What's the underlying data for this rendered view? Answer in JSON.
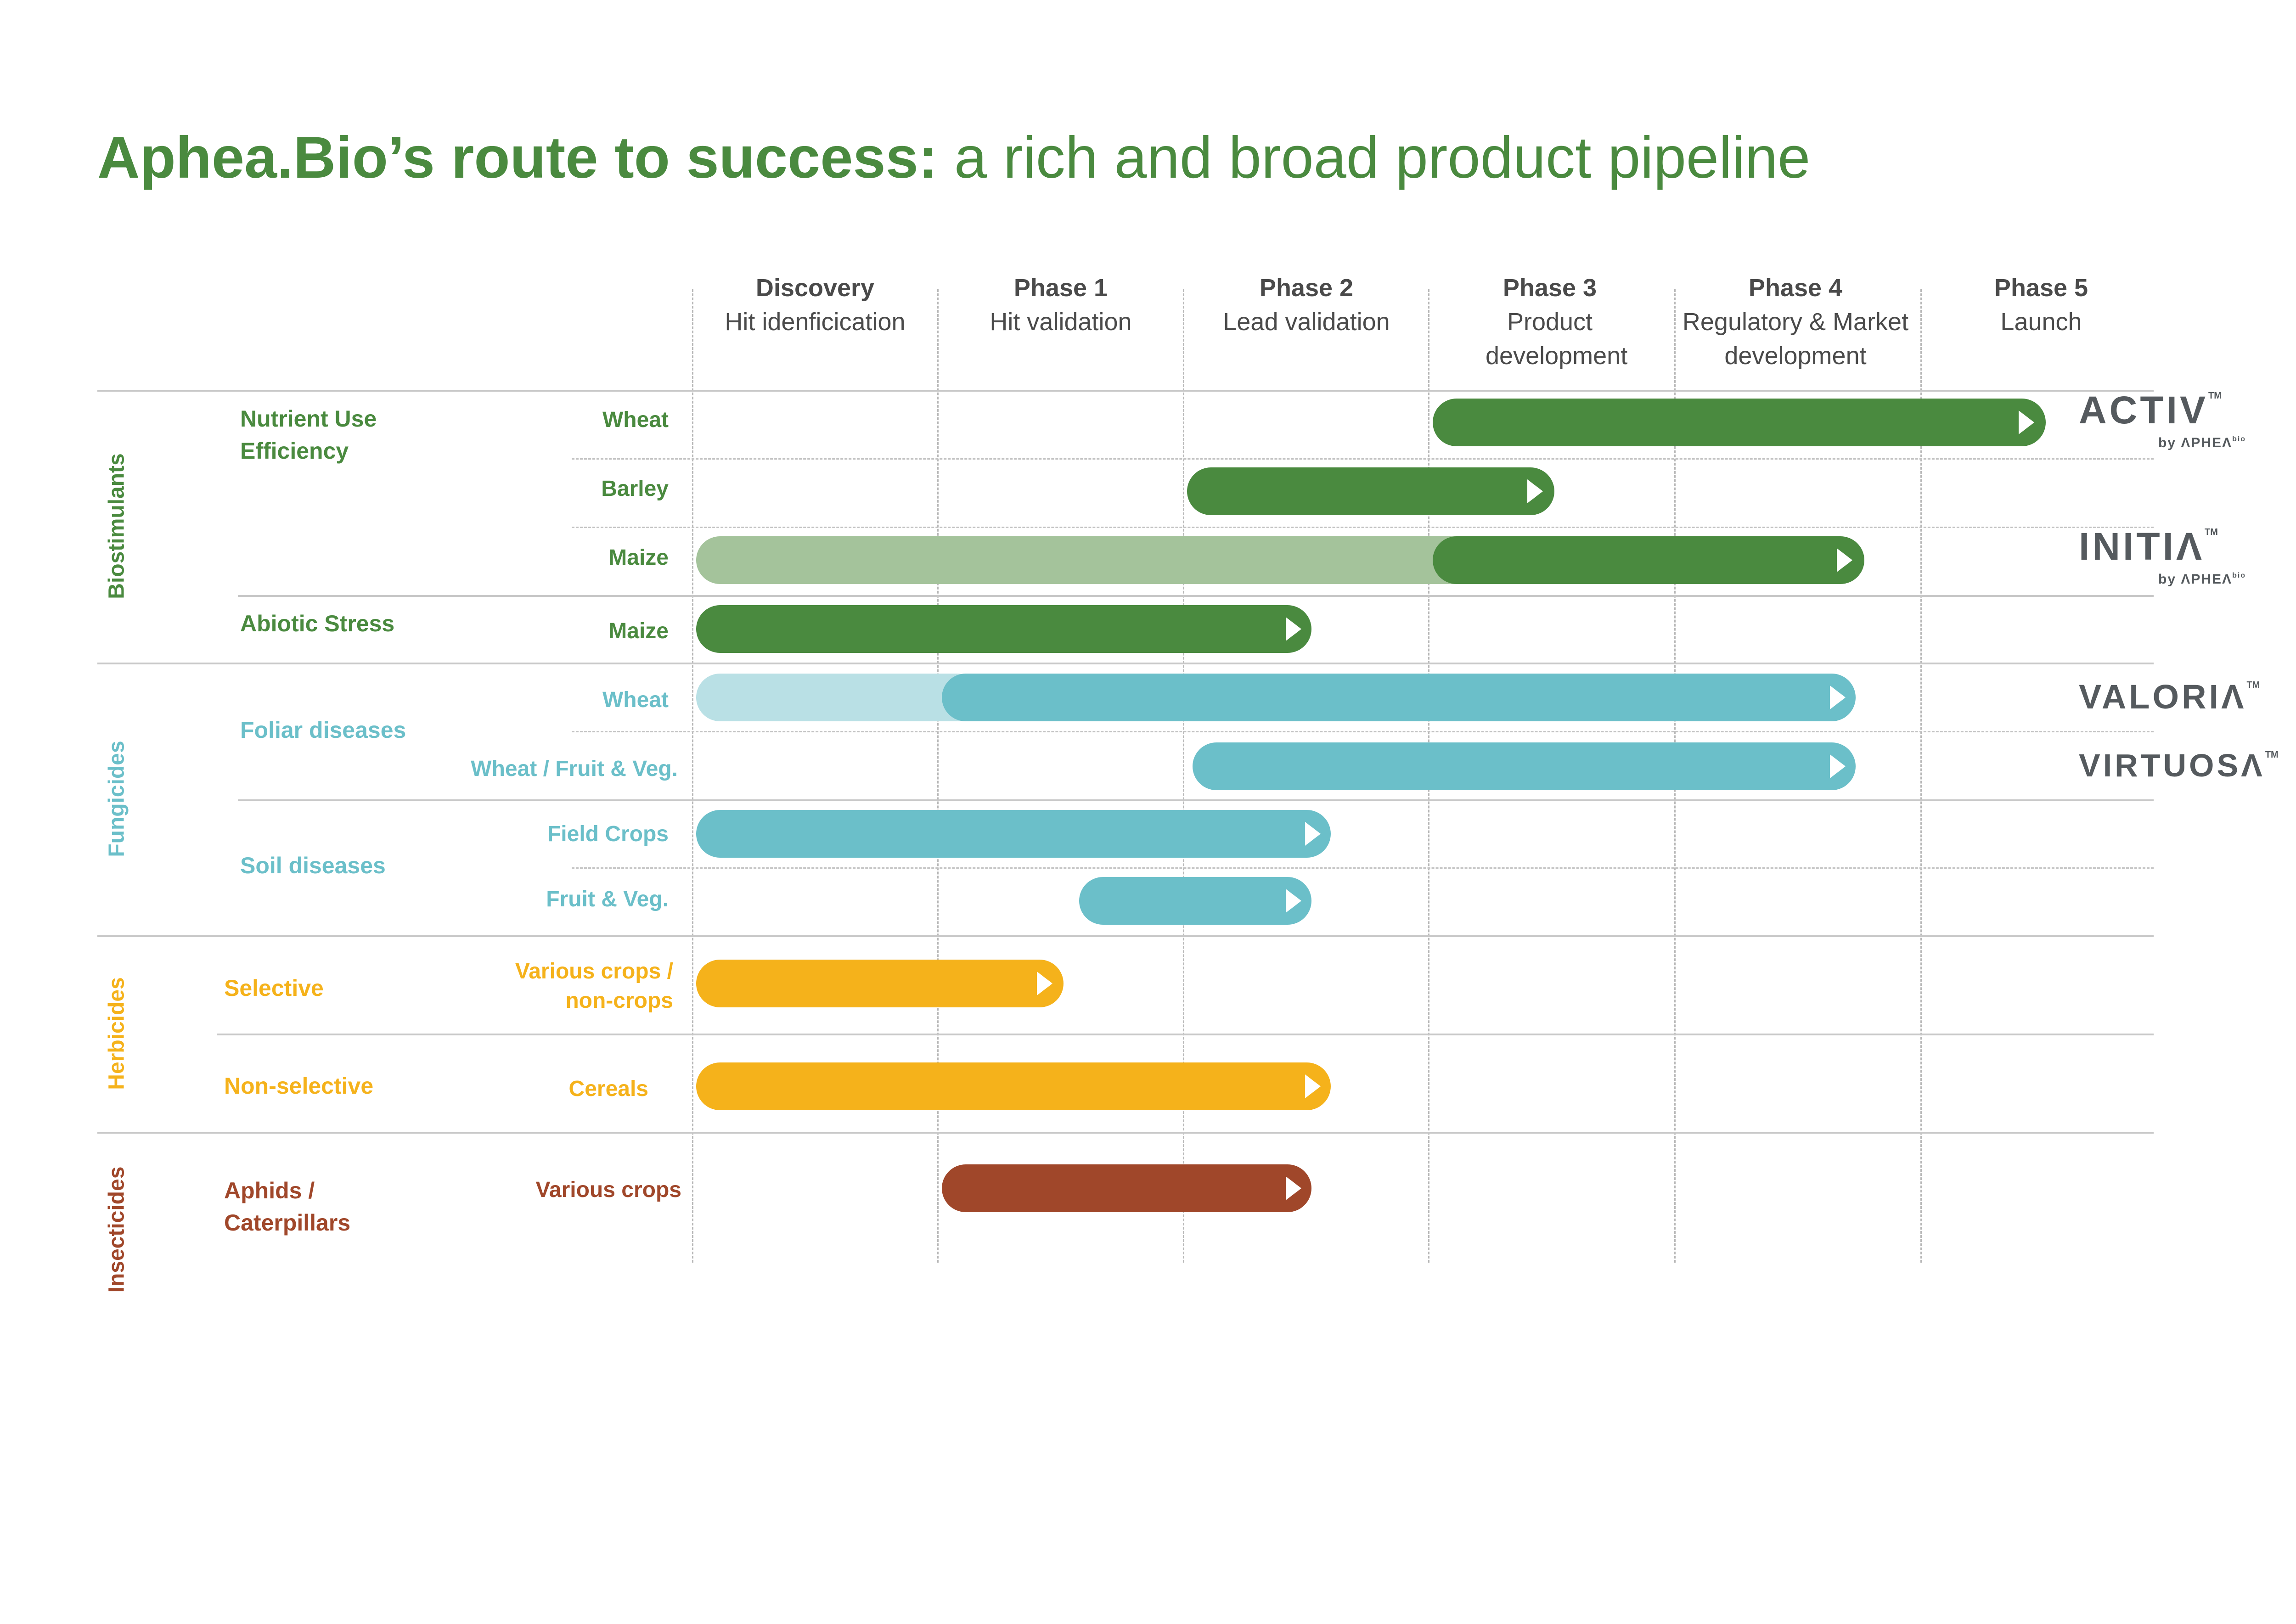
{
  "title": {
    "bold": "Aphea.Bio’s route to success:",
    "light": " a rich and broad product pipeline"
  },
  "phases": [
    {
      "name": "Discovery",
      "desc": "Hit idenficication"
    },
    {
      "name": "Phase 1",
      "desc": "Hit validation"
    },
    {
      "name": "Phase 2",
      "desc": "Lead validation"
    },
    {
      "name": "Phase 3",
      "desc": "Product development"
    },
    {
      "name": "Phase 4",
      "desc": "Regulatory & Market development"
    },
    {
      "name": "Phase 5",
      "desc": "Launch"
    }
  ],
  "categories": [
    {
      "name": "Biostimulants",
      "color": "#4a8a3f"
    },
    {
      "name": "Fungicides",
      "color": "#6bbfc9"
    },
    {
      "name": "Herbicides",
      "color": "#f5b21b"
    },
    {
      "name": "Insecticides",
      "color": "#a0472a"
    }
  ],
  "subcategories": [
    {
      "name": "Nutrient Use Efficiency",
      "category": "Biostimulants"
    },
    {
      "name": "Abiotic Stress",
      "category": "Biostimulants"
    },
    {
      "name": "Foliar diseases",
      "category": "Fungicides"
    },
    {
      "name": "Soil diseases",
      "category": "Fungicides"
    },
    {
      "name": "Selective",
      "category": "Herbicides"
    },
    {
      "name": "Non-selective",
      "category": "Herbicides"
    },
    {
      "name": "Aphids / Caterpillars",
      "category": "Insecticides"
    }
  ],
  "rows": [
    {
      "crop": "Wheat",
      "subcategory": "Nutrient Use Efficiency",
      "progress_phases": 5.5,
      "completed_from_phase": 3
    },
    {
      "crop": "Barley",
      "subcategory": "Nutrient Use Efficiency",
      "progress_phases": 3.5,
      "completed_from_phase": 2
    },
    {
      "crop": "Maize",
      "subcategory": "Nutrient Use Efficiency",
      "progress_phases": 4.75,
      "completed_from_phase": 3
    },
    {
      "crop": "Maize",
      "subcategory": "Abiotic Stress",
      "progress_phases": 2.5,
      "completed_from_phase": 0
    },
    {
      "crop": "Wheat",
      "subcategory": "Foliar diseases",
      "progress_phases": 4.75,
      "completed_from_phase": 1
    },
    {
      "crop": "Wheat / Fruit & Veg.",
      "subcategory": "Foliar diseases",
      "progress_phases": 4.75,
      "completed_from_phase": 2
    },
    {
      "crop": "Field Crops",
      "subcategory": "Soil diseases",
      "progress_phases": 2.6,
      "completed_from_phase": 0
    },
    {
      "crop": "Fruit & Veg.",
      "subcategory": "Soil diseases",
      "progress_phases": 2.5,
      "completed_from_phase": 1.55
    },
    {
      "crop": "Various crops / non-crops",
      "subcategory": "Selective",
      "progress_phases": 1.5,
      "completed_from_phase": 0
    },
    {
      "crop": "Cereals",
      "subcategory": "Non-selective",
      "progress_phases": 2.6,
      "completed_from_phase": 0
    },
    {
      "crop": "Various crops",
      "subcategory": "Aphids / Caterpillars",
      "progress_phases": 2.5,
      "completed_from_phase": 1
    }
  ],
  "logos": [
    {
      "name": "ACTIV",
      "tm": "TM",
      "by": "by ΛPHEΛ",
      "bio": "bio"
    },
    {
      "name": "INITIΛ",
      "tm": "TM",
      "by": "by ΛPHEΛ",
      "bio": "bio"
    },
    {
      "name": "VALORIΛ",
      "tm": "TM"
    },
    {
      "name": "VIRTUOSΛ",
      "tm": "TM"
    }
  ]
}
